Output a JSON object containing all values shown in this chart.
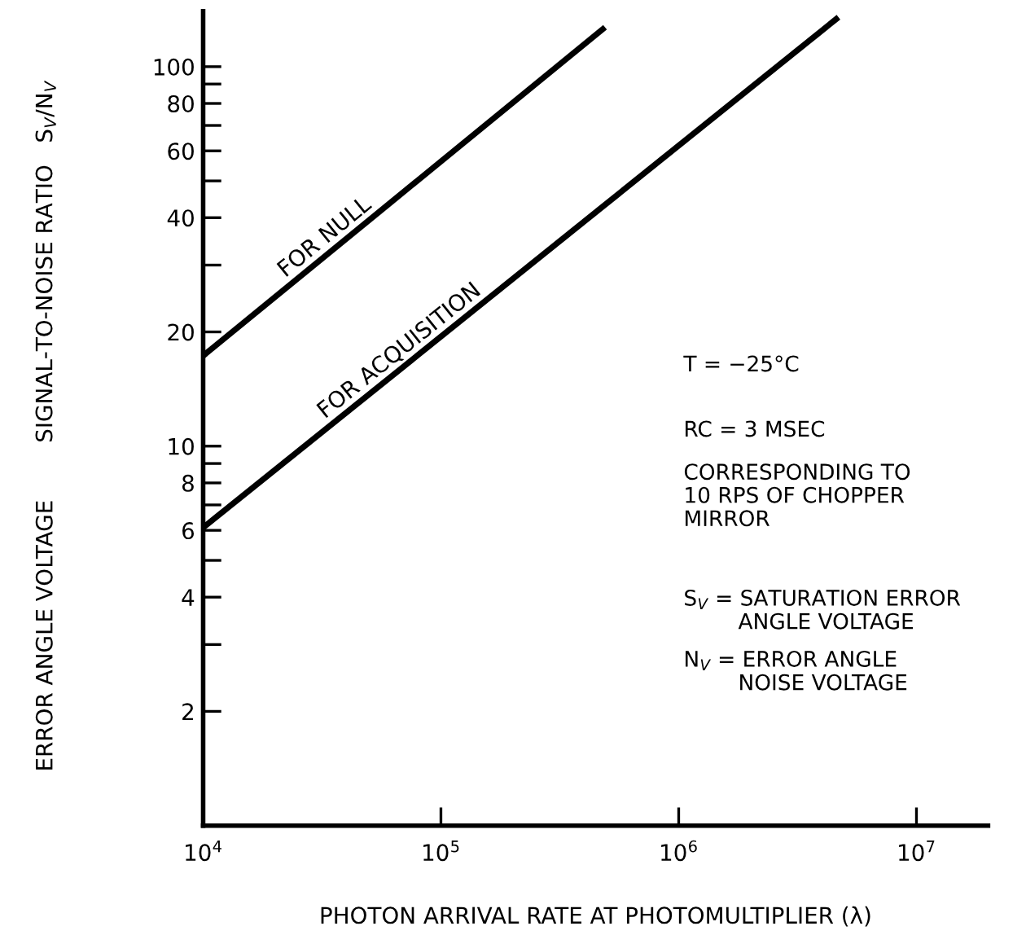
{
  "chart_data": {
    "type": "line",
    "xlabel": "PHOTON ARRIVAL RATE AT PHOTOMULTIPLIER (λ)",
    "ylabel": "SIGNAL-TO-NOISE RATIO   S$_{V}$/N$_{V}$",
    "log": "xy",
    "xlim": [
      10000,
      20000000
    ],
    "ylim": [
      1,
      140
    ],
    "xticks": [
      {
        "value": 10000,
        "label": "10$^{4}$"
      },
      {
        "value": 100000,
        "label": "10$^{5}$"
      },
      {
        "value": 1000000,
        "label": "10$^{6}$"
      },
      {
        "value": 10000000,
        "label": "10$^{7}$"
      }
    ],
    "yticks": [
      2,
      {
        "value": 3,
        "label": null
      },
      4,
      {
        "value": 5,
        "label": null
      },
      6,
      {
        "value": 7,
        "label": null
      },
      8,
      {
        "value": 9,
        "label": null
      },
      10,
      20,
      {
        "value": 30,
        "label": null
      },
      40,
      {
        "value": 50,
        "label": null
      },
      60,
      {
        "value": 70,
        "label": null
      },
      80,
      {
        "value": 90,
        "label": null
      },
      100
    ],
    "grid": false,
    "legend": false,
    "marker": "none",
    "line_style": "solid",
    "series": [
      {
        "name": "FOR NULL",
        "color": "#000000",
        "x": [
          10000,
          490000
        ],
        "values": [
          17.3,
          127
        ]
      },
      {
        "name": "FOR ACQUISITION",
        "color": "#000000",
        "x": [
          10000,
          4700000
        ],
        "values": [
          6.1,
          135
        ]
      }
    ],
    "annotations": [
      "ERROR ANGLE VOLTAGE",
      "T = −25°C",
      "RC = 3 MSEC",
      "CORRESPONDING TO\n10 RPS OF CHOPPER\nMIRROR",
      "S$_{V}$ = SATURATION ERROR\n        ANGLE VOLTAGE",
      "N$_{V}$ = ERROR ANGLE\n        NOISE VOLTAGE"
    ]
  }
}
